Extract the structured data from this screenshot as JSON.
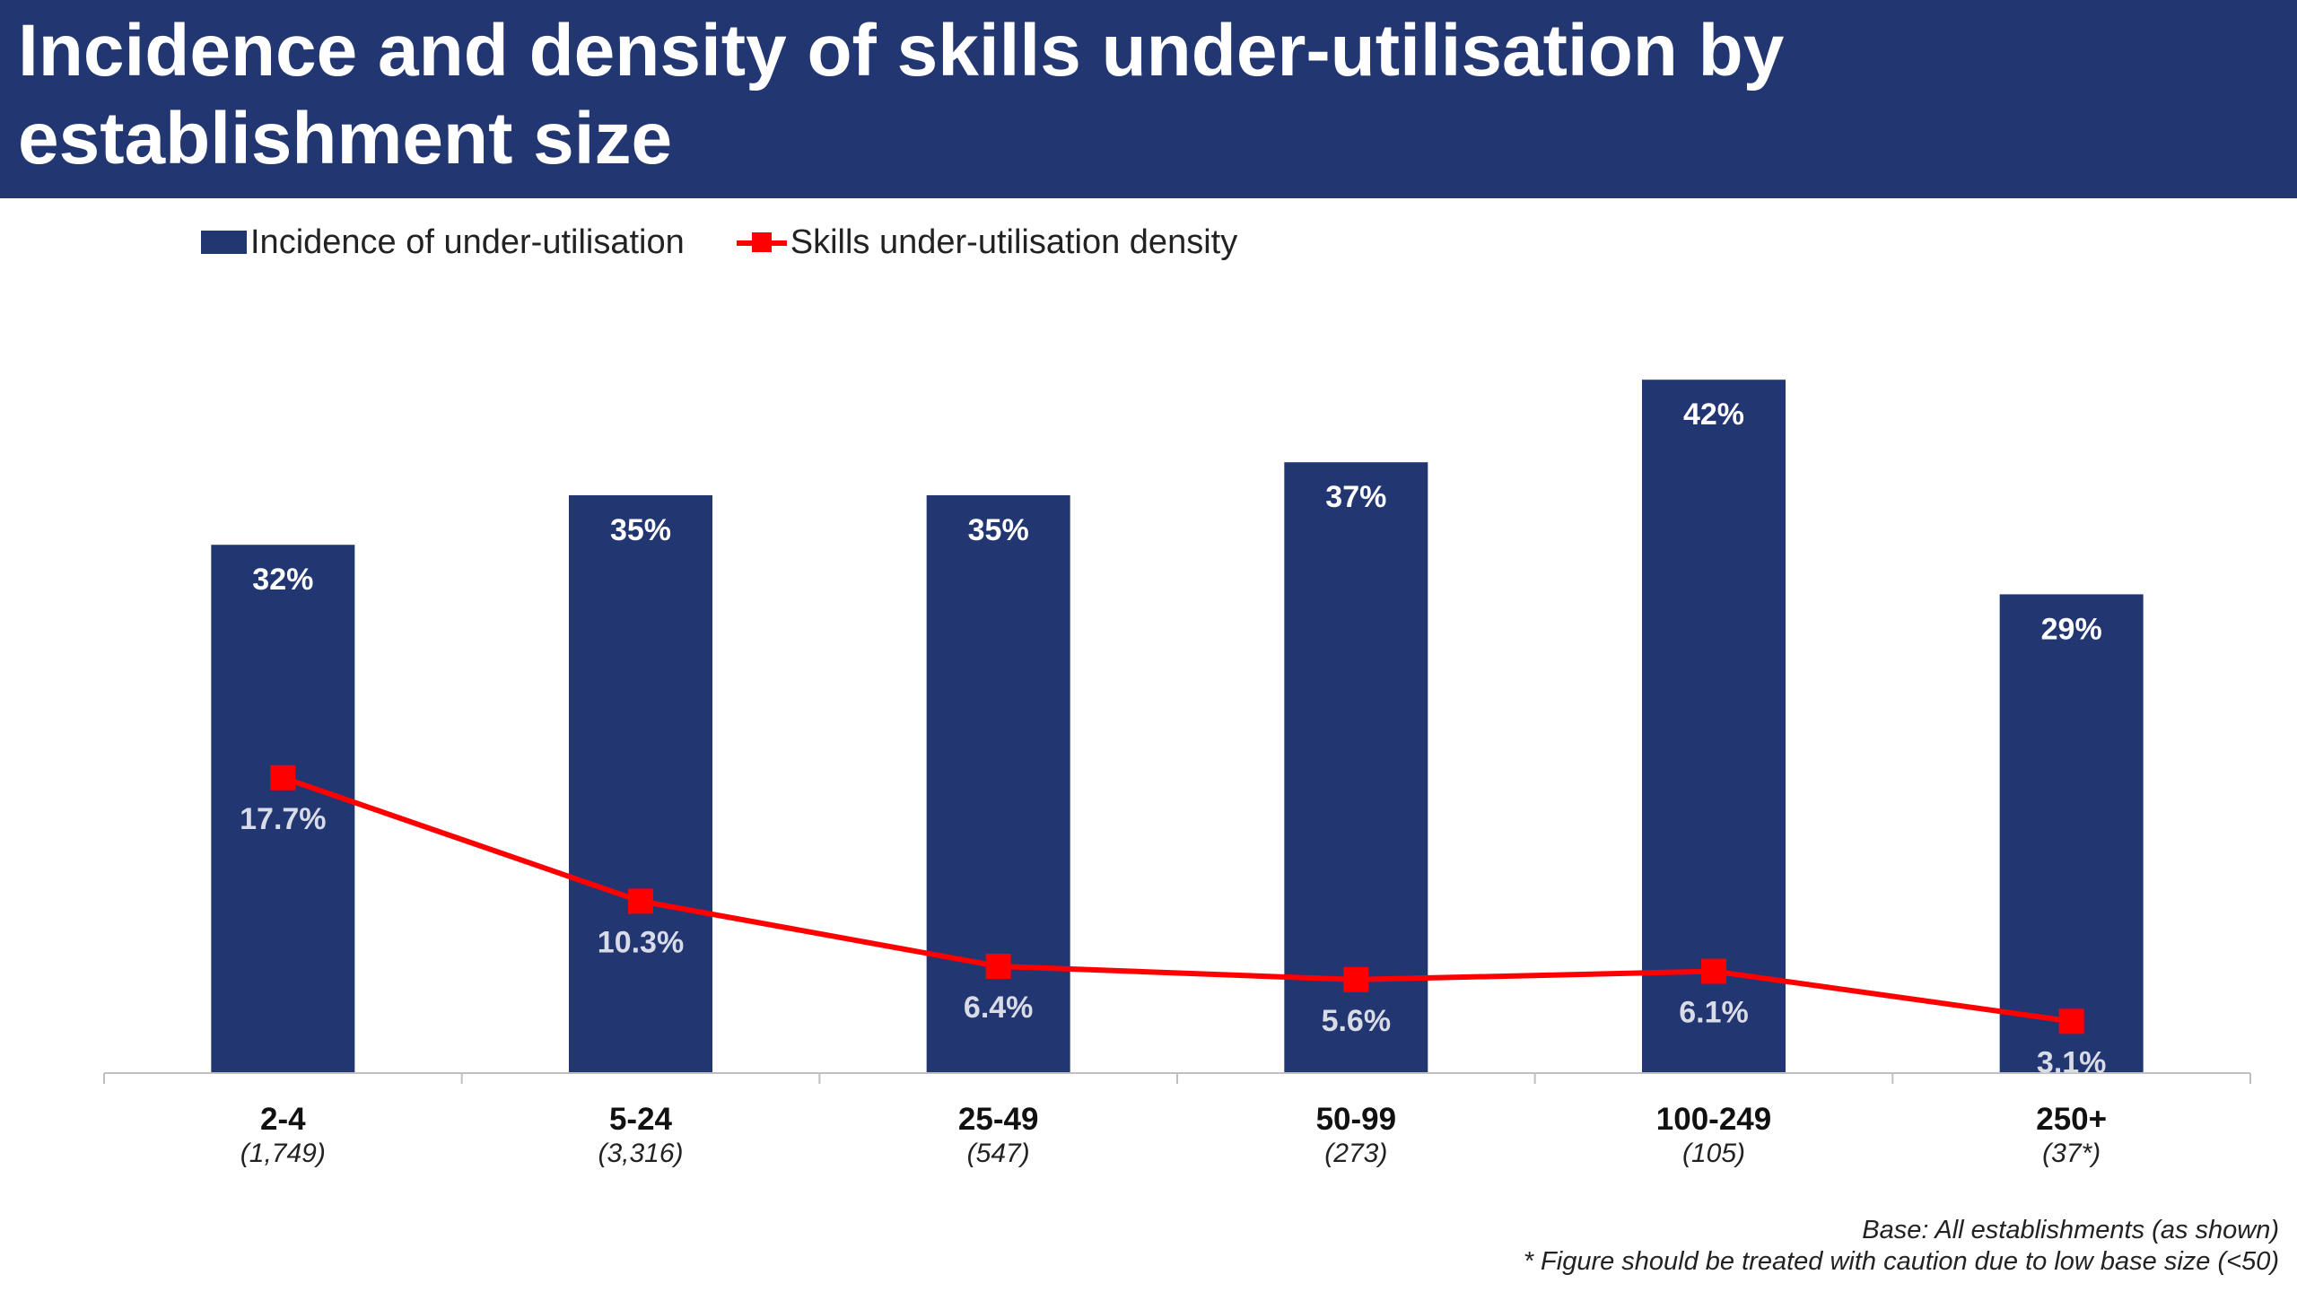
{
  "header": {
    "title": "Incidence and density of skills under-utilisation by establishment size"
  },
  "legend": {
    "bar_label": "Incidence of under-utilisation",
    "line_label": "Skills under-utilisation density"
  },
  "colors": {
    "header_bg": "#223672",
    "bar": "#223672",
    "line": "#ff0000",
    "bar_label": "#ffffff",
    "line_label": "#d9dbe6"
  },
  "chart_data": {
    "type": "bar",
    "title": "Incidence and density of skills under-utilisation by establishment size",
    "categories": [
      "2-4",
      "5-24",
      "25-49",
      "50-99",
      "100-249",
      "250+"
    ],
    "category_bases": [
      "(1,749)",
      "(3,316)",
      "(547)",
      "(273)",
      "(105)",
      "(37*)"
    ],
    "series": [
      {
        "name": "Incidence of under-utilisation",
        "type": "bar",
        "values": [
          32,
          35,
          35,
          37,
          42,
          29
        ],
        "labels": [
          "32%",
          "35%",
          "35%",
          "37%",
          "42%",
          "29%"
        ]
      },
      {
        "name": "Skills under-utilisation density",
        "type": "line",
        "marker": "square",
        "values": [
          17.7,
          10.3,
          6.4,
          5.6,
          6.1,
          3.1
        ],
        "labels": [
          "17.7%",
          "10.3%",
          "6.4%",
          "5.6%",
          "6.1%",
          "3.1%"
        ]
      }
    ],
    "ylim": [
      0,
      45
    ],
    "grid": false,
    "legend_position": "top-left",
    "xlabel": "",
    "ylabel": ""
  },
  "footnotes": {
    "base": "Base: All establishments (as shown)",
    "caution": "* Figure should be treated with caution due to low base size (<50)"
  }
}
